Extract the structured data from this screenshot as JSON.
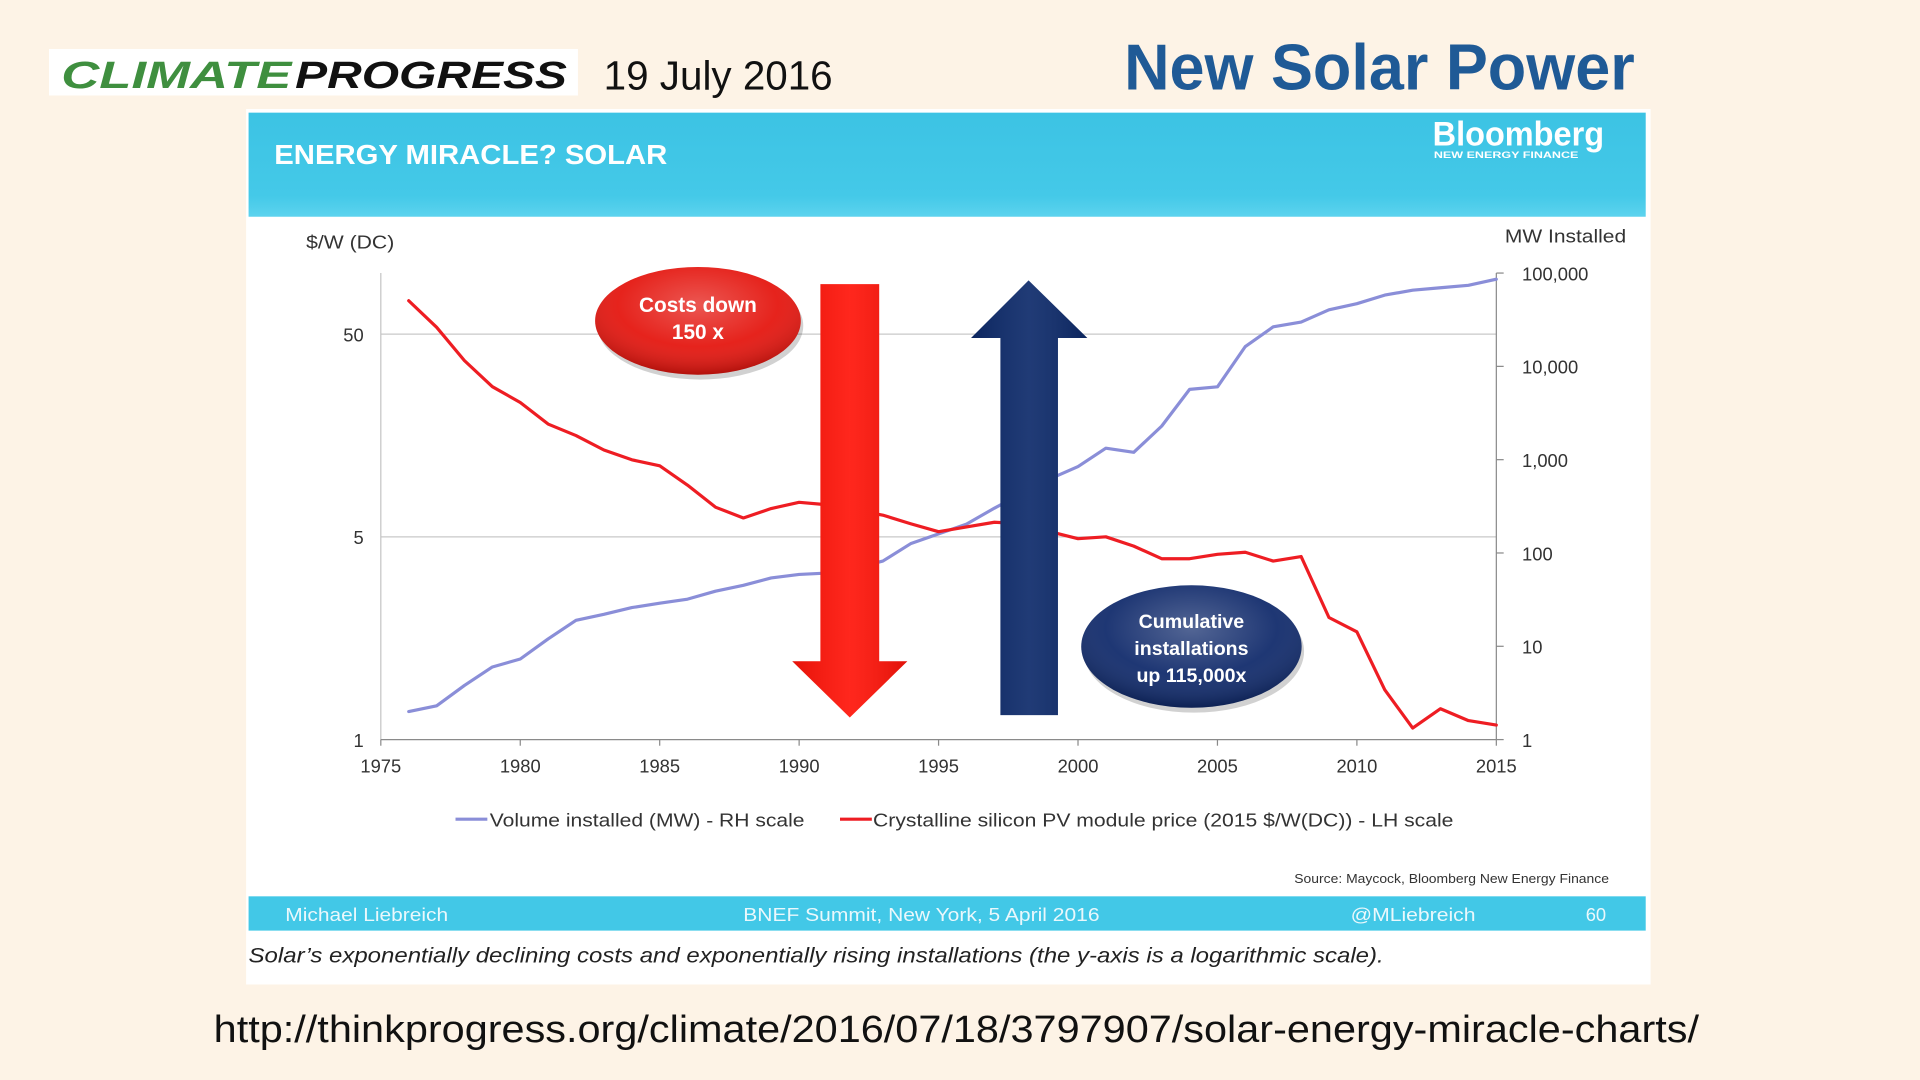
{
  "page": {
    "background_color": "#fdf3e6"
  },
  "header": {
    "logo": {
      "part1": "CLIMATE",
      "part2": "PROGRESS",
      "part1_color": "#3f8f3f",
      "part2_color": "#111111"
    },
    "date": "19 July 2016",
    "title": "New Solar Power",
    "title_color": "#1f5a96"
  },
  "slide": {
    "banner_color": "#42c8e7",
    "brand": {
      "name": "Bloomberg",
      "subtitle": "NEW ENERGY FINANCE"
    },
    "source": "Source: Maycock, Bloomberg New Energy Finance",
    "footer": {
      "author": "Michael Liebreich",
      "event": "BNEF Summit, New York, 5 April 2016",
      "handle": "@MLiebreich",
      "page_number": "60"
    },
    "caption": "Solar’s exponentially declining costs and exponentially rising installations (the y-axis is a logarithmic scale)."
  },
  "url": "http://thinkprogress.org/climate/2016/07/18/3797907/solar-energy-miracle-charts/",
  "chart_data": {
    "type": "line",
    "title": "ENERGY MIRACLE? SOLAR",
    "x_axis": {
      "range": [
        1975,
        2015
      ],
      "ticks": [
        "1975",
        "1980",
        "1985",
        "1990",
        "1995",
        "2000",
        "2005",
        "2010",
        "2015"
      ]
    },
    "left_axis": {
      "label": "$/W (DC)",
      "scale": "log",
      "range": [
        0.5,
        100
      ],
      "ticks": [
        {
          "label": "50",
          "value": 50
        },
        {
          "label": "5",
          "value": 5
        },
        {
          "label": "1"
        }
      ]
    },
    "right_axis": {
      "label": "MW Installed",
      "scale": "log",
      "range": [
        1,
        100000
      ],
      "ticks": [
        {
          "label": "100,000",
          "value": 100000
        },
        {
          "label": "10,000",
          "value": 10000
        },
        {
          "label": "1,000",
          "value": 1000
        },
        {
          "label": "100",
          "value": 100
        },
        {
          "label": "10",
          "value": 10
        },
        {
          "label": "1",
          "value": 1
        }
      ]
    },
    "x": [
      1976,
      1977,
      1978,
      1979,
      1980,
      1981,
      1982,
      1983,
      1984,
      1985,
      1986,
      1987,
      1988,
      1989,
      1990,
      1991,
      1992,
      1993,
      1994,
      1995,
      1996,
      1997,
      1998,
      1999,
      2000,
      2001,
      2002,
      2003,
      2004,
      2005,
      2006,
      2007,
      2008,
      2009,
      2010,
      2011,
      2012,
      2013,
      2014,
      2015
    ],
    "series": [
      {
        "name": "Volume installed (MW) - RH scale",
        "axis": "right",
        "color": "#8a8ed8",
        "values": [
          2,
          2.3,
          3.8,
          6,
          7.3,
          12,
          19,
          22,
          26,
          29,
          32,
          39,
          45,
          54,
          59,
          61,
          69,
          82,
          126,
          160,
          204,
          302,
          434,
          624,
          845,
          1330,
          1200,
          2290,
          5660,
          6030,
          16300,
          26500,
          29900,
          40400,
          47000,
          58000,
          65500,
          69600,
          74000,
          86000
        ]
      },
      {
        "name": "Crystalline silicon PV module price (2015 $/W(DC)) - LH scale",
        "axis": "left",
        "color": "#ee1d23",
        "values": [
          73,
          54,
          37,
          27.5,
          23,
          18,
          15.8,
          13.4,
          12,
          11.2,
          9,
          7,
          6.2,
          6.9,
          7.4,
          7.2,
          6.8,
          6.4,
          5.8,
          5.3,
          5.6,
          5.9,
          5.8,
          5.3,
          4.9,
          5.0,
          4.5,
          3.9,
          3.9,
          4.1,
          4.2,
          3.8,
          4.0,
          2.0,
          1.7,
          0.88,
          0.57,
          0.71,
          0.62,
          0.59
        ]
      }
    ],
    "grid": {
      "horizontal": true,
      "vertical": false
    },
    "legend": {
      "position": "bottom"
    },
    "annotations": [
      {
        "lines": [
          "Costs down",
          "150 x"
        ],
        "color": "#e4150e",
        "arrow": "down",
        "arrow_color": "#ff1409"
      },
      {
        "lines": [
          "Cumulative",
          "installations",
          "up 115,000x"
        ],
        "color": "#102a6b",
        "arrow": "up",
        "arrow_color": "#0d2a6a"
      }
    ]
  }
}
